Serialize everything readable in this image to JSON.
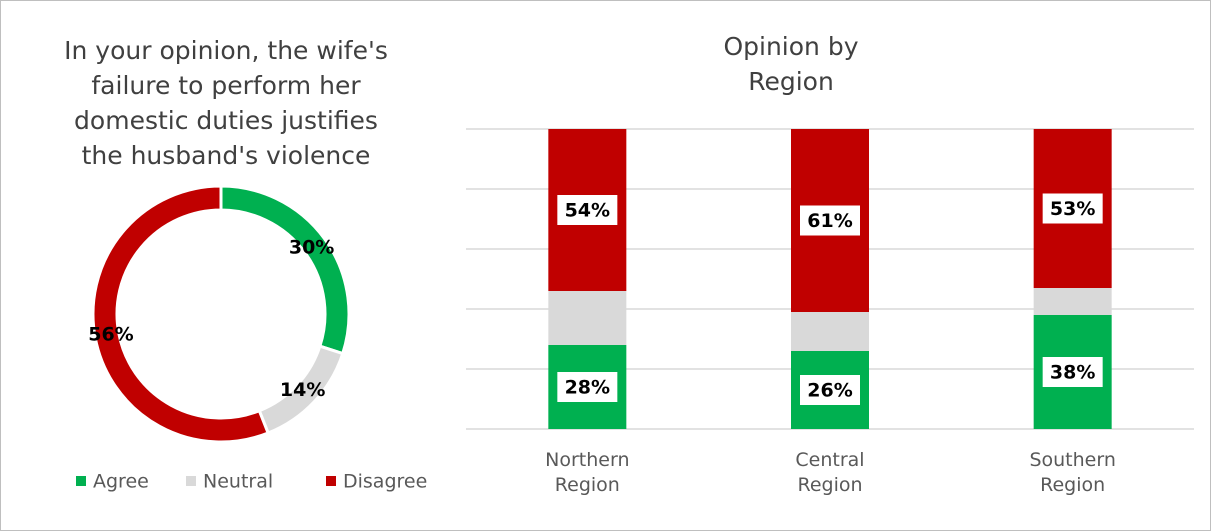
{
  "chart_data": [
    {
      "type": "donut",
      "title": "In your opinion, the wife's failure to perform her domestic duties justifies the husband's violence",
      "series": [
        {
          "name": "Agree",
          "color": "#00b050",
          "values": [
            30
          ],
          "value_labels": [
            "30%"
          ]
        },
        {
          "name": "Neutral",
          "color": "#d9d9d9",
          "values": [
            14
          ],
          "value_labels": [
            "14%"
          ]
        },
        {
          "name": "Disagree",
          "color": "#c00000",
          "values": [
            56
          ],
          "value_labels": [
            "56%"
          ]
        }
      ],
      "legend": "bottom"
    },
    {
      "type": "stacked_bar",
      "title": "Opinion by Region",
      "categories": [
        "Northern Region",
        "Central Region",
        "Southern Region"
      ],
      "series": [
        {
          "color": "#00b050",
          "values": [
            28,
            26,
            38
          ],
          "value_labels": [
            "28%",
            "26%",
            "38%"
          ]
        },
        {
          "color": "#d9d9d9",
          "values": [
            18,
            13,
            9
          ]
        },
        {
          "color": "#c00000",
          "values": [
            54,
            61,
            53
          ],
          "value_labels": [
            "54%",
            "61%",
            "53%"
          ]
        }
      ],
      "ylim": [
        0,
        100
      ],
      "yticks": [
        0,
        20,
        40,
        60,
        80,
        100
      ],
      "grid": true
    }
  ]
}
